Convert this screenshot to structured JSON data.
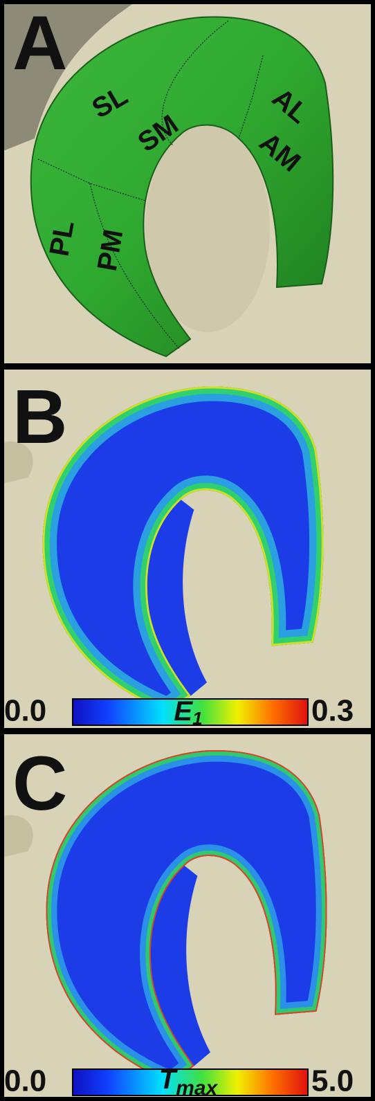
{
  "panels": [
    {
      "label": "A",
      "regions": [
        "SL",
        "SM",
        "AL",
        "AM",
        "PL",
        "PM"
      ]
    },
    {
      "label": "B",
      "colorbar": {
        "min": "0.0",
        "max": "0.3",
        "symbol": "E",
        "subscript": "1"
      }
    },
    {
      "label": "C",
      "colorbar": {
        "min": "0.0",
        "max": "5.0",
        "symbol": "T",
        "subscript": "max"
      }
    }
  ]
}
